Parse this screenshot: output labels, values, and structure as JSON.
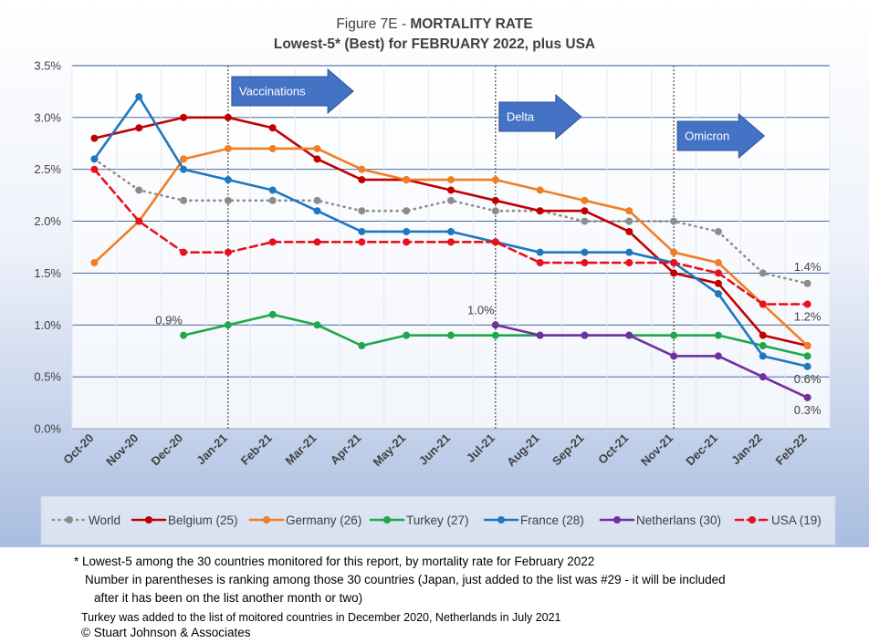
{
  "chart_data": {
    "type": "line",
    "title_prefix": "Figure 7E  - ",
    "title_main": "MORTALITY RATE",
    "subtitle": "Lowest-5* (Best) for FEBRUARY 2022, plus USA",
    "categories": [
      "Oct-20",
      "Nov-20",
      "Dec-20",
      "Jan-21",
      "Feb-21",
      "Mar-21",
      "Apr-21",
      "May-21",
      "Jun-21",
      "Jul-21",
      "Aug-21",
      "Sep-21",
      "Oct-21",
      "Nov-21",
      "Dec-21",
      "Jan-22",
      "Feb-22"
    ],
    "y_ticks": [
      "0.0%",
      "0.5%",
      "1.0%",
      "1.5%",
      "2.0%",
      "2.5%",
      "3.0%",
      "3.5%"
    ],
    "ylim": [
      0,
      3.5
    ],
    "series": [
      {
        "name": "World",
        "color": "#8c8c8c",
        "style": "dotted",
        "values": [
          2.6,
          2.3,
          2.2,
          2.2,
          2.2,
          2.2,
          2.1,
          2.1,
          2.2,
          2.1,
          2.1,
          2.0,
          2.0,
          2.0,
          1.9,
          1.5,
          1.4
        ]
      },
      {
        "name": "Belgium (25)",
        "color": "#c00000",
        "style": "solid",
        "values": [
          2.8,
          2.9,
          3.0,
          3.0,
          2.9,
          2.6,
          2.4,
          2.4,
          2.3,
          2.2,
          2.1,
          2.1,
          1.9,
          1.5,
          1.4,
          0.9,
          0.8
        ]
      },
      {
        "name": "Germany (26)",
        "color": "#f07e26",
        "style": "solid",
        "values": [
          1.6,
          2.0,
          2.6,
          2.7,
          2.7,
          2.7,
          2.5,
          2.4,
          2.4,
          2.4,
          2.3,
          2.2,
          2.1,
          1.7,
          1.6,
          1.2,
          0.8
        ]
      },
      {
        "name": "Turkey (27)",
        "color": "#1ea84a",
        "style": "solid",
        "values": [
          null,
          null,
          0.9,
          1.0,
          1.1,
          1.0,
          0.8,
          0.9,
          0.9,
          0.9,
          0.9,
          0.9,
          0.9,
          0.9,
          0.9,
          0.8,
          0.7
        ]
      },
      {
        "name": "France (28)",
        "color": "#1f77c0",
        "style": "solid",
        "values": [
          2.6,
          3.2,
          2.5,
          2.4,
          2.3,
          2.1,
          1.9,
          1.9,
          1.9,
          1.8,
          1.7,
          1.7,
          1.7,
          1.6,
          1.3,
          0.7,
          0.6
        ]
      },
      {
        "name": "Netherlans (30)",
        "color": "#7030a0",
        "style": "solid",
        "values": [
          null,
          null,
          null,
          null,
          null,
          null,
          null,
          null,
          null,
          1.0,
          0.9,
          0.9,
          0.9,
          0.7,
          0.7,
          0.5,
          0.3
        ]
      },
      {
        "name": "USA (19)",
        "color": "#e8101a",
        "style": "dashed",
        "values": [
          2.5,
          2.0,
          1.7,
          1.7,
          1.8,
          1.8,
          1.8,
          1.8,
          1.8,
          1.8,
          1.6,
          1.6,
          1.6,
          1.6,
          1.5,
          1.2,
          1.2
        ]
      }
    ],
    "data_labels": [
      {
        "text": "0.9%",
        "series": "Turkey (27)",
        "index": 2,
        "position": "above-left"
      },
      {
        "text": "1.0%",
        "series": "Netherlans (30)",
        "index": 9,
        "position": "above-left"
      },
      {
        "text": "1.4%",
        "series": "World",
        "index": 16,
        "position": "above"
      },
      {
        "text": "1.2%",
        "series": "USA (19)",
        "index": 16,
        "position": "below"
      },
      {
        "text": "0.6%",
        "series": "France (28)",
        "index": 16,
        "position": "below"
      },
      {
        "text": "0.3%",
        "series": "Netherlans (30)",
        "index": 16,
        "position": "below"
      }
    ],
    "annotations": [
      {
        "text": "Vaccinations",
        "at": "Jan-21"
      },
      {
        "text": "Delta",
        "at": "Jul-21"
      },
      {
        "text": "Omicron",
        "at": "Nov-21"
      }
    ],
    "grid": true,
    "legend_position": "bottom"
  },
  "footnotes": {
    "line1": "* Lowest-5 among the 30 countries monitored for this report, by mortality rate for February 2022",
    "line2": "Number in parentheses is ranking among those 30 countries (Japan, just added to the list was #29 - it will be included",
    "line3": "after it has been on the list another month or two)",
    "line4": "Turkey was added to the list of moitored countries in December 2020, Netherlands in July 2021",
    "line5": "© Stuart Johnson & Associates"
  }
}
